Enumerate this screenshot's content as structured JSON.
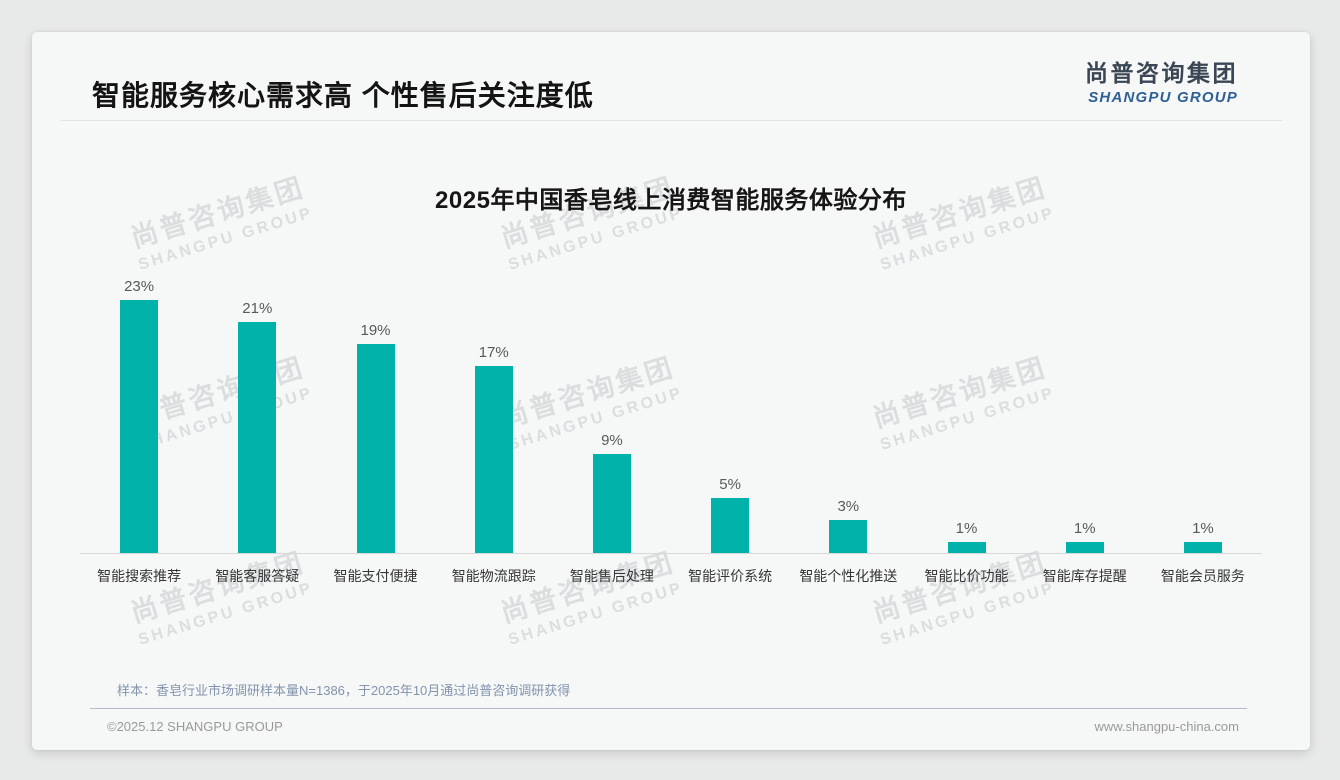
{
  "page": {
    "title": "智能服务核心需求高 个性售后关注度低",
    "logo": {
      "cn": "尚普咨询集团",
      "en": "SHANGPU GROUP"
    },
    "watermark": {
      "cn": "尚普咨询集团",
      "en": "SHANGPU GROUP"
    },
    "note": "样本：香皂行业市场调研样本量N=1386，于2025年10月通过尚普咨询调研获得",
    "footer": {
      "left": "©2025.12 SHANGPU GROUP",
      "right": "www.shangpu-china.com"
    }
  },
  "chart_data": {
    "type": "bar",
    "title": "2025年中国香皂线上消费智能服务体验分布",
    "categories": [
      "智能搜索推荐",
      "智能客服答疑",
      "智能支付便捷",
      "智能物流跟踪",
      "智能售后处理",
      "智能评价系统",
      "智能个性化推送",
      "智能比价功能",
      "智能库存提醒",
      "智能会员服务"
    ],
    "values": [
      23,
      21,
      19,
      17,
      9,
      5,
      3,
      1,
      1,
      1
    ],
    "unit": "%",
    "xlabel": "",
    "ylabel": "",
    "ylim": [
      0,
      25
    ],
    "grid": false,
    "legend": false,
    "bar_color": "#00b2a9",
    "value_label_color": "#595959"
  },
  "colors": {
    "accent_teal": "#00b2a9",
    "logo_blue": "#2f6096",
    "note_text": "#8394ad",
    "footer_divider": "#b3bdcb",
    "card_background": "#f6f7f7",
    "page_background": "#e8e9e9"
  }
}
